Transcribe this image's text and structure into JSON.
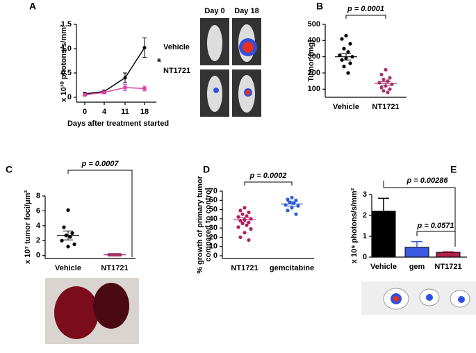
{
  "chart_data": [
    {
      "panel": "A",
      "type": "line",
      "categories": [
        "0",
        "4",
        "11",
        "18"
      ],
      "ylim": [
        -0.1,
        1.5
      ],
      "yticks": [
        0,
        0.5,
        {
          "value": 1,
          "label": "1.0"
        },
        1.5
      ],
      "ylabel": "x 10¹⁰ photons/s/mm²",
      "xlabel": "Days after treatment started",
      "annotation": "*",
      "image_labels": [
        "Day 0",
        "Day 18"
      ],
      "series": [
        {
          "name": "Vehicle",
          "color": "#000000",
          "values": [
            0.07,
            0.12,
            0.4,
            1.02
          ],
          "errors": [
            0.03,
            0.03,
            0.1,
            0.2
          ]
        },
        {
          "name": "NT1721",
          "color": "#e040a8",
          "values": [
            0.05,
            0.1,
            0.2,
            0.18
          ],
          "errors": [
            0.02,
            0.03,
            0.06,
            0.05
          ]
        }
      ]
    },
    {
      "panel": "B",
      "type": "dot",
      "categories": [
        "Vehicle",
        "NT1721"
      ],
      "ylim": [
        50,
        500
      ],
      "yticks": [
        100,
        200,
        300,
        400,
        500
      ],
      "ylabel": "Tumor (mg)",
      "annotation": "p = 0.0001",
      "colors": [
        "#000000",
        "#a8326a"
      ],
      "points": [
        [
          430,
          410,
          380,
          350,
          330,
          310,
          300,
          290,
          280,
          260,
          240,
          200
        ],
        [
          220,
          190,
          170,
          160,
          150,
          140,
          130,
          120,
          110,
          100,
          90,
          80
        ]
      ],
      "means": [
        300,
        135
      ],
      "sems": [
        20,
        12
      ]
    },
    {
      "panel": "C",
      "type": "dot",
      "categories": [
        "Vehicle",
        "NT1721"
      ],
      "ylim": [
        -0.4,
        8
      ],
      "yticks": [
        0,
        2,
        4,
        6,
        8
      ],
      "ylabel": "x 10⁷ tumor foci/μm²",
      "annotation": "p = 0.0007",
      "colors": [
        "#000000",
        "#a8326a"
      ],
      "points": [
        [
          6.1,
          3.8,
          3.0,
          2.7,
          2.5,
          2.0,
          1.5,
          1.2
        ],
        [
          0.1,
          0.1,
          0.1,
          0.1,
          0.1,
          0.1,
          0.1
        ]
      ],
      "means": [
        2.7,
        0.1
      ],
      "sems": [
        0.6,
        0.02
      ]
    },
    {
      "panel": "D",
      "type": "dot",
      "categories": [
        "NT1721",
        "gemcitabine"
      ],
      "ylim": [
        -3,
        70
      ],
      "yticks": [
        0,
        10,
        20,
        30,
        40,
        50,
        60,
        70
      ],
      "ylabel": [
        "% growth of primary tumor",
        "compared to control"
      ],
      "annotation": "p = 0.0002",
      "colors": [
        "#b02060",
        "#2c5fd8"
      ],
      "points": [
        [
          52,
          49,
          47,
          45,
          43,
          42,
          40,
          39,
          38,
          36,
          35,
          33,
          31,
          29,
          25,
          20,
          17
        ],
        [
          63,
          61,
          60,
          58,
          57,
          55,
          54,
          52,
          49,
          45
        ]
      ],
      "means": [
        39,
        56
      ],
      "sems": [
        2.5,
        2.5
      ]
    },
    {
      "panel": "E",
      "type": "bar",
      "categories": [
        "Vehicle",
        "gem",
        "NT1721"
      ],
      "ylim": [
        0,
        3
      ],
      "yticks": [
        0,
        1,
        2,
        3
      ],
      "ylabel": "x 10⁹ photons/s/mm²",
      "annotations": [
        "p = 0.00286",
        "p = 0.0571"
      ],
      "colors": [
        "#000000",
        "#3a5be0",
        "#b0204a"
      ],
      "values": [
        2.2,
        0.47,
        0.23
      ],
      "errors": [
        0.62,
        0.27,
        0.03
      ]
    }
  ]
}
